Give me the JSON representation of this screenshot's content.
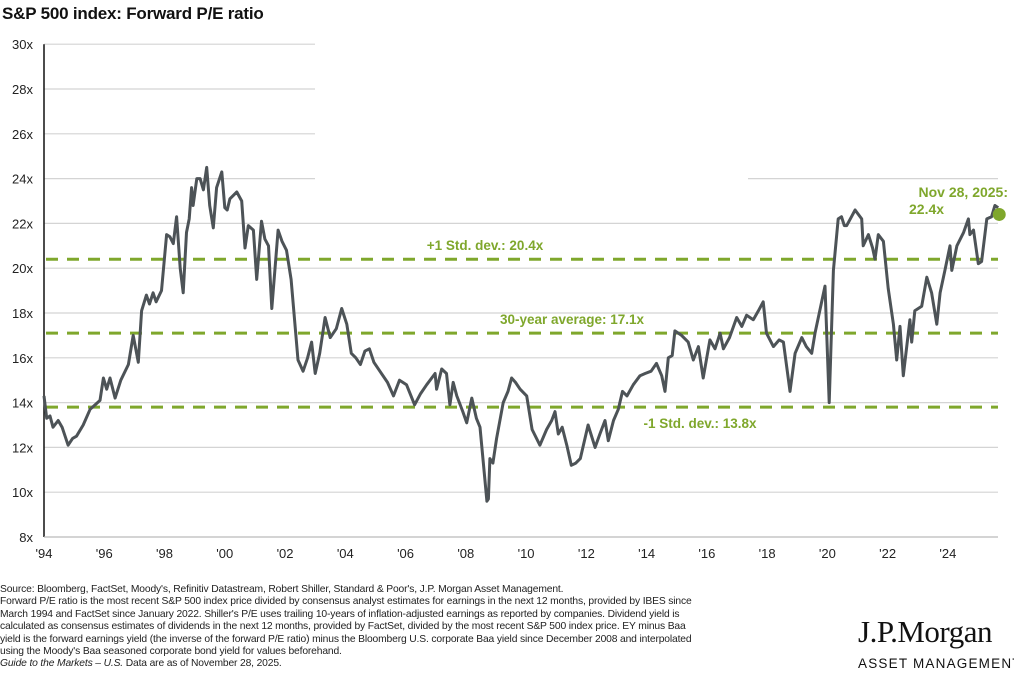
{
  "title": "S&P 500 index: Forward P/E ratio",
  "chart_data": {
    "type": "line",
    "title": "S&P 500 index: Forward P/E ratio",
    "xlabel": "",
    "ylabel": "",
    "ylim": [
      8,
      30
    ],
    "xlim": [
      1994,
      2026
    ],
    "y_ticks": [
      "8x",
      "10x",
      "12x",
      "14x",
      "16x",
      "18x",
      "20x",
      "22x",
      "24x",
      "26x",
      "28x",
      "30x"
    ],
    "x_ticks": [
      "'94",
      "'96",
      "'98",
      "'00",
      "'02",
      "'04",
      "'06",
      "'08",
      "'10",
      "'12",
      "'14",
      "'16",
      "'18",
      "'20",
      "'22",
      "'24"
    ],
    "grid": "horizontal",
    "line_color": "#4d5357",
    "accent_color": "#7fa72c",
    "reference_lines": [
      {
        "label": "+1 Std. dev.: 20.4x",
        "value": 20.4
      },
      {
        "label": "30-year average: 17.1x",
        "value": 17.1
      },
      {
        "label": "-1 Std. dev.: 13.8x",
        "value": 13.8
      }
    ],
    "annotation": {
      "line1": "Nov 28, 2025:",
      "line2": "22.4x",
      "value": 22.4
    },
    "series": [
      {
        "points": [
          [
            1994.0,
            14.3
          ],
          [
            1994.09,
            13.3
          ],
          [
            1994.2,
            13.4
          ],
          [
            1994.3,
            12.9
          ],
          [
            1994.47,
            13.2
          ],
          [
            1994.6,
            12.9
          ],
          [
            1994.8,
            12.1
          ],
          [
            1994.95,
            12.4
          ],
          [
            1995.08,
            12.5
          ],
          [
            1995.3,
            13.0
          ],
          [
            1995.53,
            13.7
          ],
          [
            1995.7,
            13.9
          ],
          [
            1995.86,
            14.1
          ],
          [
            1995.97,
            15.1
          ],
          [
            1996.08,
            14.6
          ],
          [
            1996.19,
            15.1
          ],
          [
            1996.36,
            14.2
          ],
          [
            1996.55,
            15.0
          ],
          [
            1996.8,
            15.7
          ],
          [
            1996.96,
            17.0
          ],
          [
            1997.13,
            15.8
          ],
          [
            1997.24,
            18.1
          ],
          [
            1997.4,
            18.8
          ],
          [
            1997.5,
            18.4
          ],
          [
            1997.62,
            18.9
          ],
          [
            1997.72,
            18.5
          ],
          [
            1997.9,
            19.0
          ],
          [
            1998.07,
            21.5
          ],
          [
            1998.18,
            21.4
          ],
          [
            1998.29,
            21.1
          ],
          [
            1998.4,
            22.3
          ],
          [
            1998.52,
            20.0
          ],
          [
            1998.62,
            18.9
          ],
          [
            1998.73,
            21.6
          ],
          [
            1998.82,
            22.2
          ],
          [
            1998.9,
            23.6
          ],
          [
            1998.95,
            22.8
          ],
          [
            1999.07,
            24.0
          ],
          [
            1999.18,
            24.0
          ],
          [
            1999.29,
            23.5
          ],
          [
            1999.4,
            24.5
          ],
          [
            1999.5,
            22.8
          ],
          [
            1999.62,
            21.8
          ],
          [
            1999.73,
            23.6
          ],
          [
            1999.9,
            24.3
          ],
          [
            2000.0,
            22.7
          ],
          [
            2000.08,
            22.6
          ],
          [
            2000.17,
            23.1
          ],
          [
            2000.4,
            23.4
          ],
          [
            2000.56,
            23.0
          ],
          [
            2000.67,
            20.9
          ],
          [
            2000.78,
            21.9
          ],
          [
            2000.95,
            21.7
          ],
          [
            2001.06,
            19.5
          ],
          [
            2001.22,
            22.1
          ],
          [
            2001.33,
            21.3
          ],
          [
            2001.45,
            21.0
          ],
          [
            2001.56,
            18.2
          ],
          [
            2001.77,
            21.7
          ],
          [
            2001.9,
            21.2
          ],
          [
            2002.05,
            20.8
          ],
          [
            2002.2,
            19.5
          ],
          [
            2002.43,
            15.9
          ],
          [
            2002.6,
            15.4
          ],
          [
            2002.75,
            16.0
          ],
          [
            2002.88,
            16.7
          ],
          [
            2003.0,
            15.3
          ],
          [
            2003.15,
            16.2
          ],
          [
            2003.33,
            17.8
          ],
          [
            2003.5,
            16.9
          ],
          [
            2003.7,
            17.3
          ],
          [
            2003.88,
            18.2
          ],
          [
            2004.05,
            17.5
          ],
          [
            2004.2,
            16.2
          ],
          [
            2004.35,
            16.0
          ],
          [
            2004.5,
            15.7
          ],
          [
            2004.65,
            16.3
          ],
          [
            2004.8,
            16.4
          ],
          [
            2004.95,
            15.8
          ],
          [
            2005.15,
            15.4
          ],
          [
            2005.4,
            14.9
          ],
          [
            2005.6,
            14.3
          ],
          [
            2005.8,
            15.0
          ],
          [
            2006.03,
            14.8
          ],
          [
            2006.3,
            13.9
          ],
          [
            2006.5,
            14.4
          ],
          [
            2006.7,
            14.8
          ],
          [
            2006.98,
            15.3
          ],
          [
            2007.03,
            14.6
          ],
          [
            2007.2,
            15.5
          ],
          [
            2007.36,
            15.3
          ],
          [
            2007.47,
            13.9
          ],
          [
            2007.58,
            14.9
          ],
          [
            2007.7,
            14.3
          ],
          [
            2007.9,
            13.6
          ],
          [
            2008.03,
            13.1
          ],
          [
            2008.2,
            14.2
          ],
          [
            2008.35,
            13.3
          ],
          [
            2008.47,
            12.9
          ],
          [
            2008.7,
            9.6
          ],
          [
            2008.75,
            9.7
          ],
          [
            2008.8,
            11.5
          ],
          [
            2008.9,
            11.3
          ],
          [
            2009.02,
            12.4
          ],
          [
            2009.24,
            14.0
          ],
          [
            2009.4,
            14.5
          ],
          [
            2009.52,
            15.1
          ],
          [
            2009.65,
            14.9
          ],
          [
            2009.8,
            14.6
          ],
          [
            2010.02,
            14.3
          ],
          [
            2010.2,
            12.8
          ],
          [
            2010.46,
            12.1
          ],
          [
            2010.68,
            12.8
          ],
          [
            2010.85,
            13.2
          ],
          [
            2010.96,
            13.6
          ],
          [
            2011.07,
            12.6
          ],
          [
            2011.2,
            12.9
          ],
          [
            2011.35,
            12.1
          ],
          [
            2011.5,
            11.2
          ],
          [
            2011.65,
            11.3
          ],
          [
            2011.8,
            11.5
          ],
          [
            2012.06,
            13.0
          ],
          [
            2012.29,
            12.0
          ],
          [
            2012.45,
            12.6
          ],
          [
            2012.62,
            13.2
          ],
          [
            2012.73,
            12.3
          ],
          [
            2012.9,
            13.2
          ],
          [
            2013.06,
            13.7
          ],
          [
            2013.2,
            14.5
          ],
          [
            2013.35,
            14.3
          ],
          [
            2013.56,
            14.8
          ],
          [
            2013.78,
            15.2
          ],
          [
            2013.95,
            15.3
          ],
          [
            2014.15,
            15.4
          ],
          [
            2014.33,
            15.75
          ],
          [
            2014.5,
            15.2
          ],
          [
            2014.61,
            14.5
          ],
          [
            2014.72,
            16.0
          ],
          [
            2014.85,
            16.1
          ],
          [
            2014.94,
            17.2
          ],
          [
            2015.16,
            17.0
          ],
          [
            2015.38,
            16.7
          ],
          [
            2015.55,
            15.9
          ],
          [
            2015.72,
            16.5
          ],
          [
            2015.88,
            15.1
          ],
          [
            2016.1,
            16.8
          ],
          [
            2016.27,
            16.4
          ],
          [
            2016.44,
            17.1
          ],
          [
            2016.55,
            16.4
          ],
          [
            2016.75,
            16.9
          ],
          [
            2016.99,
            17.8
          ],
          [
            2017.16,
            17.4
          ],
          [
            2017.32,
            17.9
          ],
          [
            2017.54,
            17.7
          ],
          [
            2017.71,
            18.1
          ],
          [
            2017.87,
            18.5
          ],
          [
            2017.98,
            17.1
          ],
          [
            2018.21,
            16.5
          ],
          [
            2018.4,
            16.8
          ],
          [
            2018.54,
            16.7
          ],
          [
            2018.76,
            14.5
          ],
          [
            2018.93,
            16.2
          ],
          [
            2019.15,
            16.9
          ],
          [
            2019.3,
            16.5
          ],
          [
            2019.48,
            16.2
          ],
          [
            2019.59,
            17.1
          ],
          [
            2019.92,
            19.2
          ],
          [
            2020.06,
            14.0
          ],
          [
            2020.2,
            19.9
          ],
          [
            2020.36,
            22.2
          ],
          [
            2020.47,
            22.3
          ],
          [
            2020.56,
            21.9
          ],
          [
            2020.64,
            21.9
          ],
          [
            2020.8,
            22.3
          ],
          [
            2020.92,
            22.6
          ],
          [
            2021.14,
            22.2
          ],
          [
            2021.19,
            21.0
          ],
          [
            2021.36,
            21.5
          ],
          [
            2021.5,
            20.9
          ],
          [
            2021.58,
            20.4
          ],
          [
            2021.69,
            21.5
          ],
          [
            2021.86,
            21.2
          ],
          [
            2022.02,
            19.1
          ],
          [
            2022.19,
            17.5
          ],
          [
            2022.3,
            15.9
          ],
          [
            2022.41,
            17.4
          ],
          [
            2022.52,
            15.2
          ],
          [
            2022.74,
            17.7
          ],
          [
            2022.8,
            16.7
          ],
          [
            2022.9,
            18.1
          ],
          [
            2023.13,
            18.3
          ],
          [
            2023.3,
            19.6
          ],
          [
            2023.46,
            18.9
          ],
          [
            2023.63,
            17.5
          ],
          [
            2023.74,
            18.9
          ],
          [
            2023.9,
            19.9
          ],
          [
            2024.07,
            21.0
          ],
          [
            2024.13,
            19.9
          ],
          [
            2024.3,
            21.0
          ],
          [
            2024.52,
            21.6
          ],
          [
            2024.68,
            22.2
          ],
          [
            2024.73,
            21.5
          ],
          [
            2024.85,
            21.7
          ],
          [
            2025.01,
            20.2
          ],
          [
            2025.12,
            20.3
          ],
          [
            2025.29,
            22.2
          ],
          [
            2025.45,
            22.3
          ],
          [
            2025.56,
            22.8
          ],
          [
            2025.67,
            22.7
          ]
        ]
      }
    ]
  },
  "footnotes": {
    "line1": "Source: Bloomberg, FactSet, Moody's, Refinitiv Datastream, Robert Shiller, Standard & Poor's, J.P. Morgan Asset Management.",
    "line2": "Forward P/E ratio is the most recent S&P 500 index price divided by consensus analyst estimates for earnings in the next 12 months, provided by IBES since",
    "line3": "March 1994 and FactSet since January 2022. Shiller's P/E uses trailing 10-years of inflation-adjusted earnings as reported by companies. Dividend yield is",
    "line4": "calculated as consensus estimates of dividends in the next 12 months, provided by FactSet, divided by the most recent S&P 500 index price. EY minus Baa",
    "line5": "yield is the forward earnings yield (the inverse of the forward P/E ratio) minus the Bloomberg U.S. corporate Baa yield since December 2008 and interpolated",
    "line6": "using the Moody's Baa seasoned corporate bond yield for values beforehand.",
    "guide_italic": "Guide to the Markets – U.S.",
    "as_of": " Data are as of November 28, 2025."
  },
  "logo": {
    "name": "J.P.Morgan",
    "subtitle": "ASSET MANAGEMENT"
  }
}
